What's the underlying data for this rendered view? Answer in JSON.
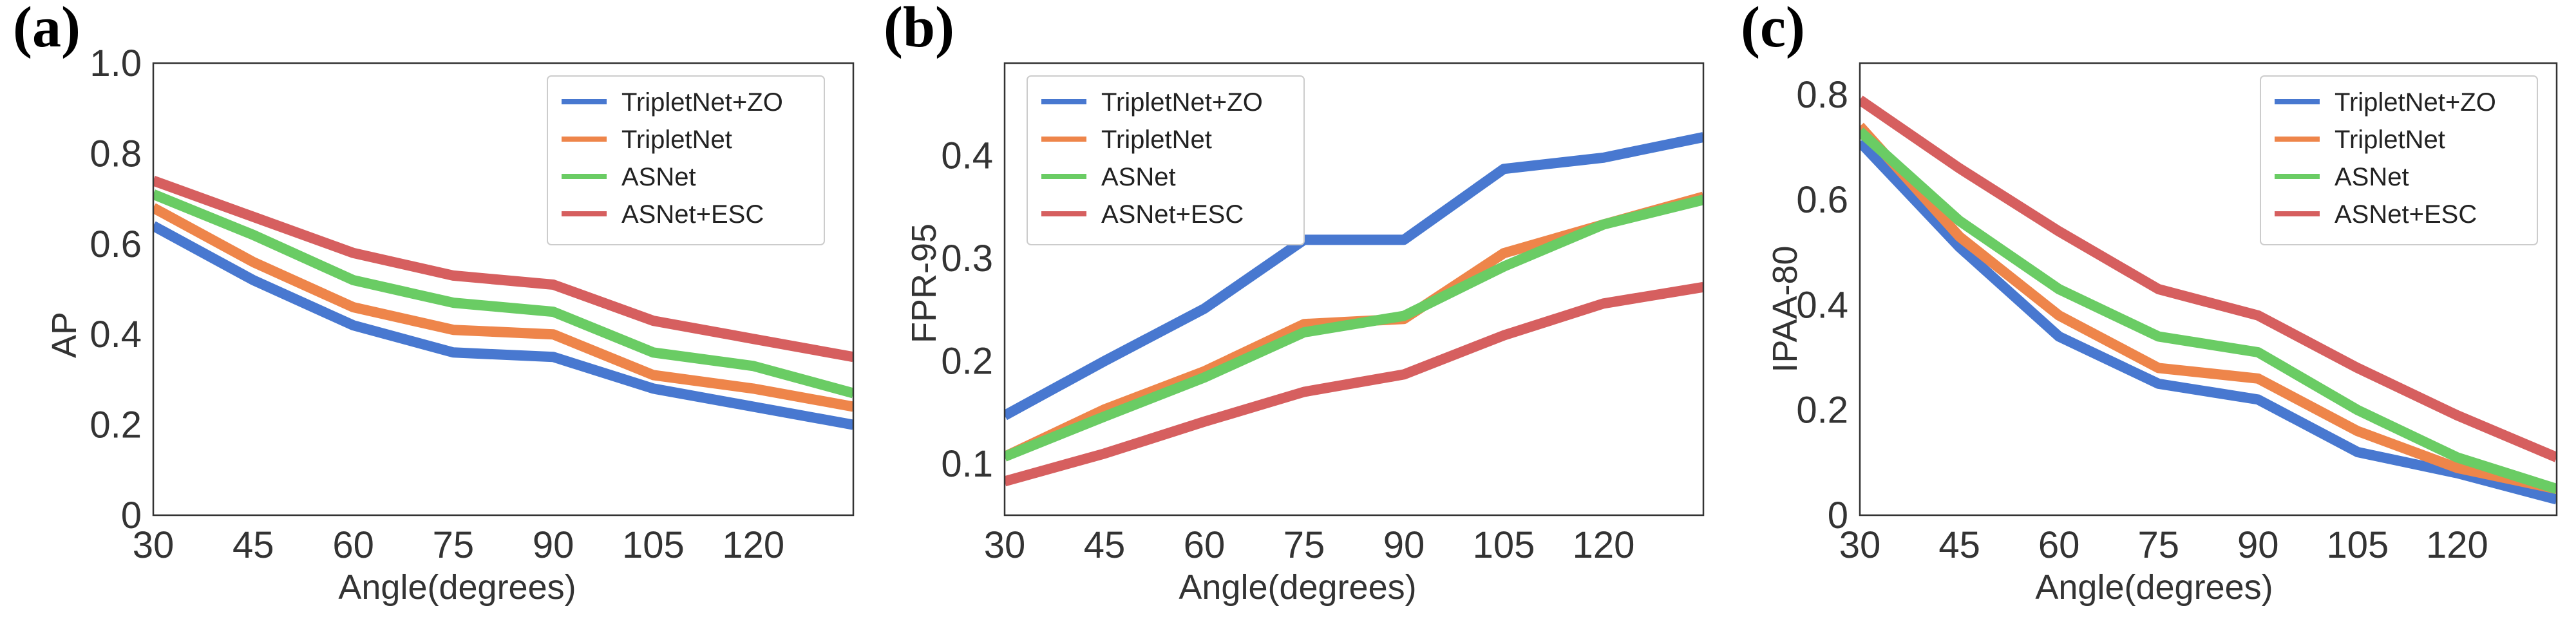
{
  "colors": {
    "TripletNet+ZO": "#4878d0",
    "TripletNet": "#ee854a",
    "ASNet": "#6acc64",
    "ASNet+ESC": "#d65f5f"
  },
  "chart_data": [
    {
      "type": "line",
      "panel_label": "(a)",
      "title": "",
      "xlabel": "Angle(degrees)",
      "ylabel": "AP",
      "x": [
        30,
        45,
        60,
        75,
        90,
        105,
        120,
        135
      ],
      "xlim": [
        30,
        135
      ],
      "ylim": [
        0,
        1.0
      ],
      "xticks": [
        30,
        45,
        60,
        75,
        90,
        105,
        120
      ],
      "xtick_labels": [
        "30",
        "45",
        "60",
        "75",
        "90",
        "105",
        "120"
      ],
      "yticks": [
        0,
        0.2,
        0.4,
        0.6,
        0.8,
        1.0
      ],
      "ytick_labels": [
        "0",
        "0.2",
        "0.4",
        "0.6",
        "0.8",
        "1.0"
      ],
      "legend_position": "top-right",
      "series": [
        {
          "name": "TripletNet+ZO",
          "values": [
            0.64,
            0.52,
            0.42,
            0.36,
            0.35,
            0.28,
            0.24,
            0.2
          ]
        },
        {
          "name": "TripletNet",
          "values": [
            0.68,
            0.56,
            0.46,
            0.41,
            0.4,
            0.31,
            0.28,
            0.24
          ]
        },
        {
          "name": "ASNet",
          "values": [
            0.71,
            0.62,
            0.52,
            0.47,
            0.45,
            0.36,
            0.33,
            0.27
          ]
        },
        {
          "name": "ASNet+ESC",
          "values": [
            0.74,
            0.66,
            0.58,
            0.53,
            0.51,
            0.43,
            0.39,
            0.35
          ]
        }
      ]
    },
    {
      "type": "line",
      "panel_label": "(b)",
      "title": "",
      "xlabel": "Angle(degrees)",
      "ylabel": "FPR-95",
      "x": [
        30,
        45,
        60,
        75,
        90,
        105,
        120,
        135
      ],
      "xlim": [
        30,
        135
      ],
      "ylim": [
        0.05,
        0.49
      ],
      "xticks": [
        30,
        45,
        60,
        75,
        90,
        105,
        120
      ],
      "xtick_labels": [
        "30",
        "45",
        "60",
        "75",
        "90",
        "105",
        "120"
      ],
      "yticks": [
        0.1,
        0.2,
        0.3,
        0.4
      ],
      "ytick_labels": [
        "0.1",
        "0.2",
        "0.3",
        "0.4"
      ],
      "legend_position": "top-left",
      "series": [
        {
          "name": "TripletNet+ZO",
          "values": [
            0.147,
            0.2,
            0.251,
            0.318,
            0.318,
            0.387,
            0.398,
            0.418
          ]
        },
        {
          "name": "TripletNet",
          "values": [
            0.107,
            0.153,
            0.19,
            0.236,
            0.241,
            0.305,
            0.333,
            0.36
          ]
        },
        {
          "name": "ASNet",
          "values": [
            0.107,
            0.146,
            0.184,
            0.228,
            0.244,
            0.292,
            0.333,
            0.357
          ]
        },
        {
          "name": "ASNet+ESC",
          "values": [
            0.083,
            0.11,
            0.141,
            0.17,
            0.187,
            0.225,
            0.256,
            0.272
          ]
        }
      ]
    },
    {
      "type": "line",
      "panel_label": "(c)",
      "title": "",
      "xlabel": "Angle(degrees)",
      "ylabel": "IPAA-80",
      "x": [
        30,
        45,
        60,
        75,
        90,
        105,
        120,
        135
      ],
      "xlim": [
        30,
        135
      ],
      "ylim": [
        0,
        0.86
      ],
      "xticks": [
        30,
        45,
        60,
        75,
        90,
        105,
        120
      ],
      "xtick_labels": [
        "30",
        "45",
        "60",
        "75",
        "90",
        "105",
        "120"
      ],
      "yticks": [
        0,
        0.2,
        0.4,
        0.6,
        0.8
      ],
      "ytick_labels": [
        "0",
        "0.2",
        "0.4",
        "0.6",
        "0.8"
      ],
      "legend_position": "top-right",
      "series": [
        {
          "name": "TripletNet+ZO",
          "values": [
            0.71,
            0.51,
            0.34,
            0.25,
            0.22,
            0.12,
            0.08,
            0.03
          ]
        },
        {
          "name": "TripletNet",
          "values": [
            0.74,
            0.53,
            0.38,
            0.28,
            0.26,
            0.16,
            0.09,
            0.05
          ]
        },
        {
          "name": "ASNet",
          "values": [
            0.73,
            0.56,
            0.43,
            0.34,
            0.31,
            0.2,
            0.11,
            0.05
          ]
        },
        {
          "name": "ASNet+ESC",
          "values": [
            0.79,
            0.66,
            0.54,
            0.43,
            0.38,
            0.28,
            0.19,
            0.11
          ]
        }
      ]
    }
  ]
}
